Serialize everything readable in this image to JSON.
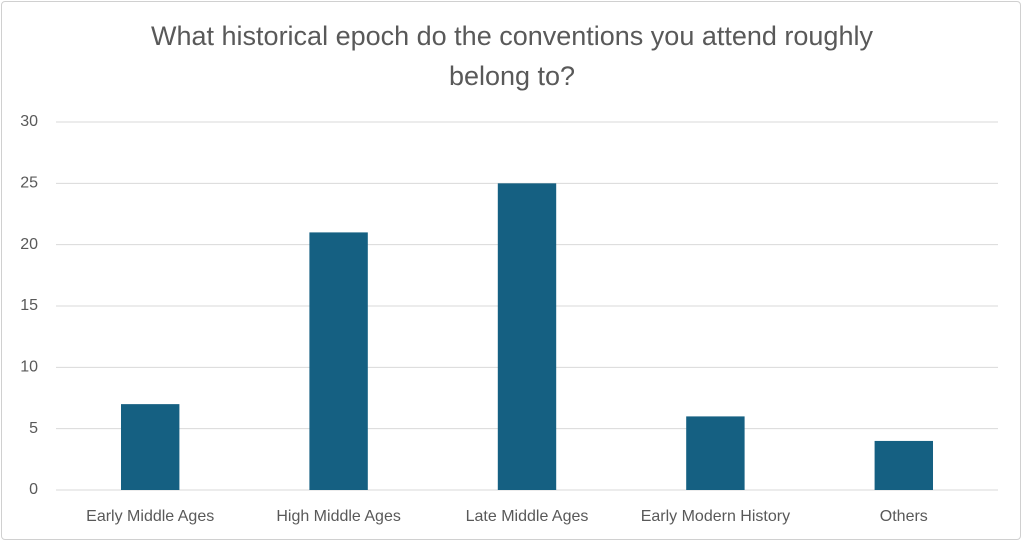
{
  "chart_data": {
    "type": "bar",
    "title": "What historical epoch do the conventions you attend roughly belong to?",
    "categories": [
      "Early Middle Ages",
      "High Middle Ages",
      "Late Middle Ages",
      "Early Modern History",
      "Others"
    ],
    "values": [
      7,
      21,
      25,
      6,
      4
    ],
    "color": "#156082",
    "ylim": [
      0,
      30
    ],
    "yticks": [
      0,
      5,
      10,
      15,
      20,
      25,
      30
    ],
    "grid": true
  }
}
